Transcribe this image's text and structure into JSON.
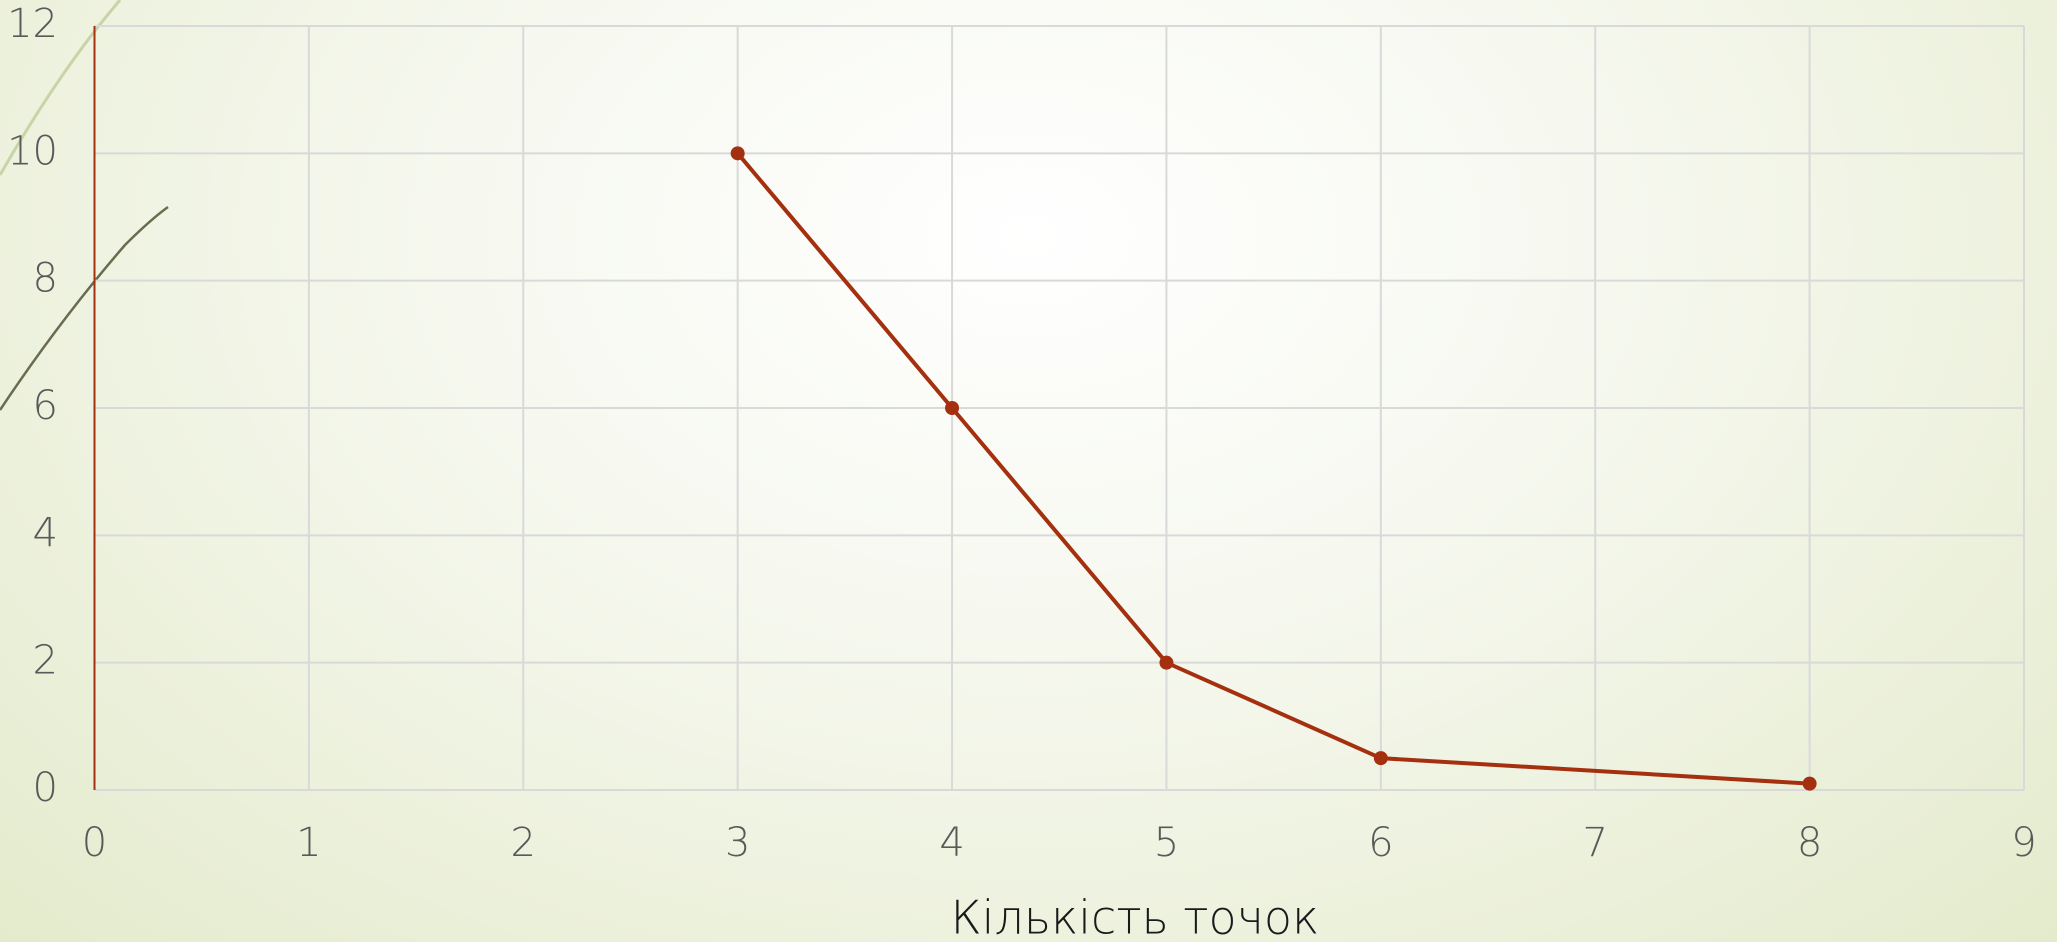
{
  "chart_data": {
    "type": "line",
    "x_label": "Кількість точок",
    "x": [
      3,
      4,
      5,
      6,
      8
    ],
    "series": [
      {
        "color": "#a5300f",
        "values": [
          10,
          6,
          2,
          0.5,
          0.1
        ]
      }
    ],
    "xlim": [
      0,
      9
    ],
    "xticks": [
      0,
      1,
      2,
      3,
      4,
      5,
      6,
      7,
      8,
      9
    ],
    "ylim": [
      0,
      12
    ],
    "yticks": [
      0,
      2,
      4,
      6,
      8,
      10,
      12
    ],
    "grid": true
  }
}
